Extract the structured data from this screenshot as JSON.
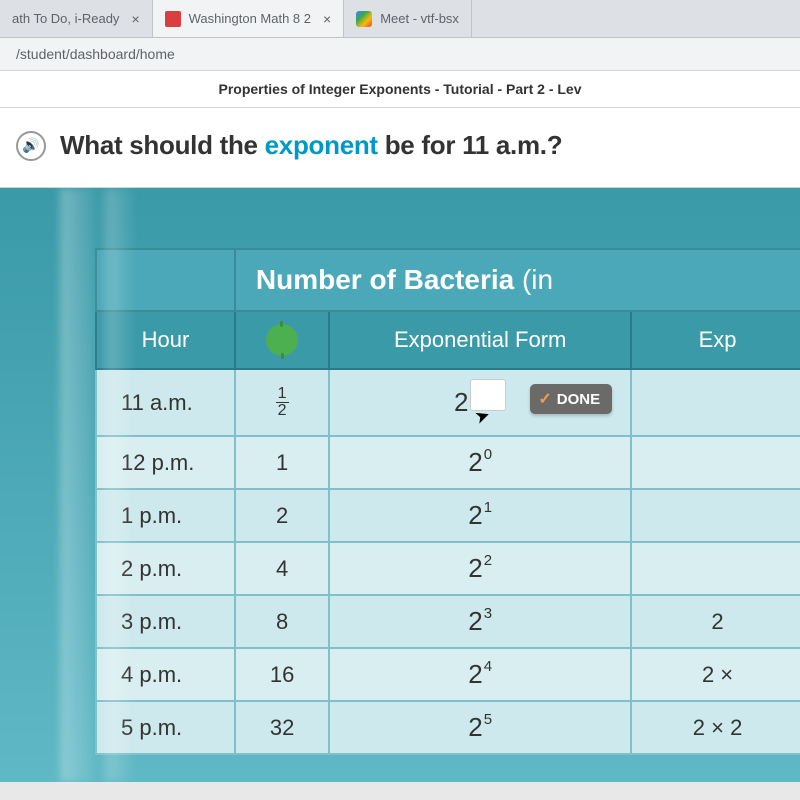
{
  "tabs": [
    {
      "title": "ath To Do, i-Ready",
      "active": false
    },
    {
      "title": "Washington Math 8 2",
      "active": true
    },
    {
      "title": "Meet - vtf-bsx",
      "active": false
    }
  ],
  "url": "/student/dashboard/home",
  "breadcrumb": "Properties of Integer Exponents - Tutorial - Part 2 - Lev",
  "question": {
    "prefix": "What should the ",
    "highlight": "exponent",
    "suffix": " be for 11 a.m.?"
  },
  "table": {
    "title": "Number of Bacteria",
    "title_paren": " (in ",
    "headers": {
      "hour": "Hour",
      "icon": "bacteria",
      "expform": "Exponential Form",
      "exp2": "Exp"
    },
    "done_label": "DONE",
    "rows": [
      {
        "hour": "11 a.m.",
        "value_type": "fraction",
        "num": "1",
        "den": "2",
        "base": "2",
        "sup": "",
        "input": true,
        "exp2": ""
      },
      {
        "hour": "12 p.m.",
        "value": "1",
        "base": "2",
        "sup": "0",
        "exp2": ""
      },
      {
        "hour": "1 p.m.",
        "value": "2",
        "base": "2",
        "sup": "1",
        "exp2": ""
      },
      {
        "hour": "2 p.m.",
        "value": "4",
        "base": "2",
        "sup": "2",
        "exp2": ""
      },
      {
        "hour": "3 p.m.",
        "value": "8",
        "base": "2",
        "sup": "3",
        "exp2": "2"
      },
      {
        "hour": "4 p.m.",
        "value": "16",
        "base": "2",
        "sup": "4",
        "exp2": "2 ×"
      },
      {
        "hour": "5 p.m.",
        "value": "32",
        "base": "2",
        "sup": "5",
        "exp2": "2 × 2"
      }
    ]
  },
  "colors": {
    "tab_bg": "#dde1e6",
    "highlight": "#0099c6",
    "table_header": "#4aa8b8",
    "table_subheader": "#3a9aa8",
    "cell_bg": "#cde9ed",
    "content_bg": "#5fb8c5",
    "done_bg": "#6a6a68",
    "check_color": "#ff9944"
  }
}
